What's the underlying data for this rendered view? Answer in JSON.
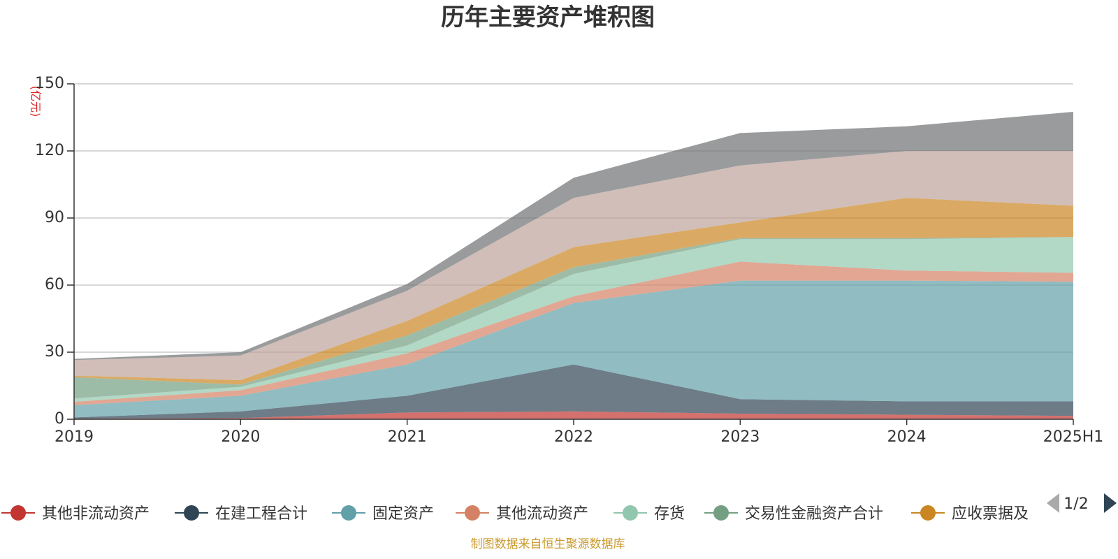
{
  "chart_data": {
    "type": "area",
    "stacked": true,
    "title": "历年主要资产堆积图",
    "unit_label": "(亿元)",
    "x": [
      "2019",
      "2020",
      "2021",
      "2022",
      "2023",
      "2024",
      "2025H1"
    ],
    "ylim": [
      0,
      150
    ],
    "yticks": [
      "0",
      "30",
      "60",
      "90",
      "120",
      "150"
    ],
    "grid": true,
    "series": [
      {
        "name": "其他非流动资产",
        "color": "#c23531",
        "values": [
          0.3,
          0.5,
          3,
          3.5,
          2.5,
          2,
          1.5
        ],
        "in_legend": true
      },
      {
        "name": "在建工程合计",
        "color": "#2f4554",
        "values": [
          0.5,
          3,
          7.5,
          21,
          6.5,
          6,
          6.5
        ],
        "in_legend": true
      },
      {
        "name": "固定资产",
        "color": "#61a0a8",
        "values": [
          5.5,
          7,
          14,
          27.5,
          53,
          54,
          53.5
        ],
        "in_legend": true
      },
      {
        "name": "其他流动资产",
        "color": "#d48265",
        "values": [
          1.5,
          2.5,
          5,
          3,
          8.5,
          4.5,
          4
        ],
        "in_legend": true
      },
      {
        "name": "存货",
        "color": "#91c7ae",
        "values": [
          1.5,
          1.5,
          3.5,
          10,
          10,
          14,
          16
        ],
        "in_legend": true
      },
      {
        "name": "交易性金融资产合计",
        "color": "#749f83",
        "values": [
          9.5,
          1,
          4.5,
          3,
          0.5,
          0.5,
          0
        ],
        "in_legend": true
      },
      {
        "name": "应收票据及",
        "color": "#ca8622",
        "values": [
          0.7,
          2,
          6.5,
          9,
          7,
          18,
          14
        ],
        "in_legend": true
      },
      {
        "name": "",
        "color": "#bda29a",
        "values": [
          7,
          11,
          13.5,
          22,
          25.5,
          21,
          24.5
        ],
        "in_legend": false
      },
      {
        "name": "",
        "color": "#6e7074",
        "values": [
          0.5,
          1.5,
          3,
          9,
          14.5,
          11,
          17.5
        ],
        "in_legend": false
      }
    ]
  },
  "legend": {
    "page": "1/2"
  },
  "source": "制图数据来自恒生聚源数据库"
}
